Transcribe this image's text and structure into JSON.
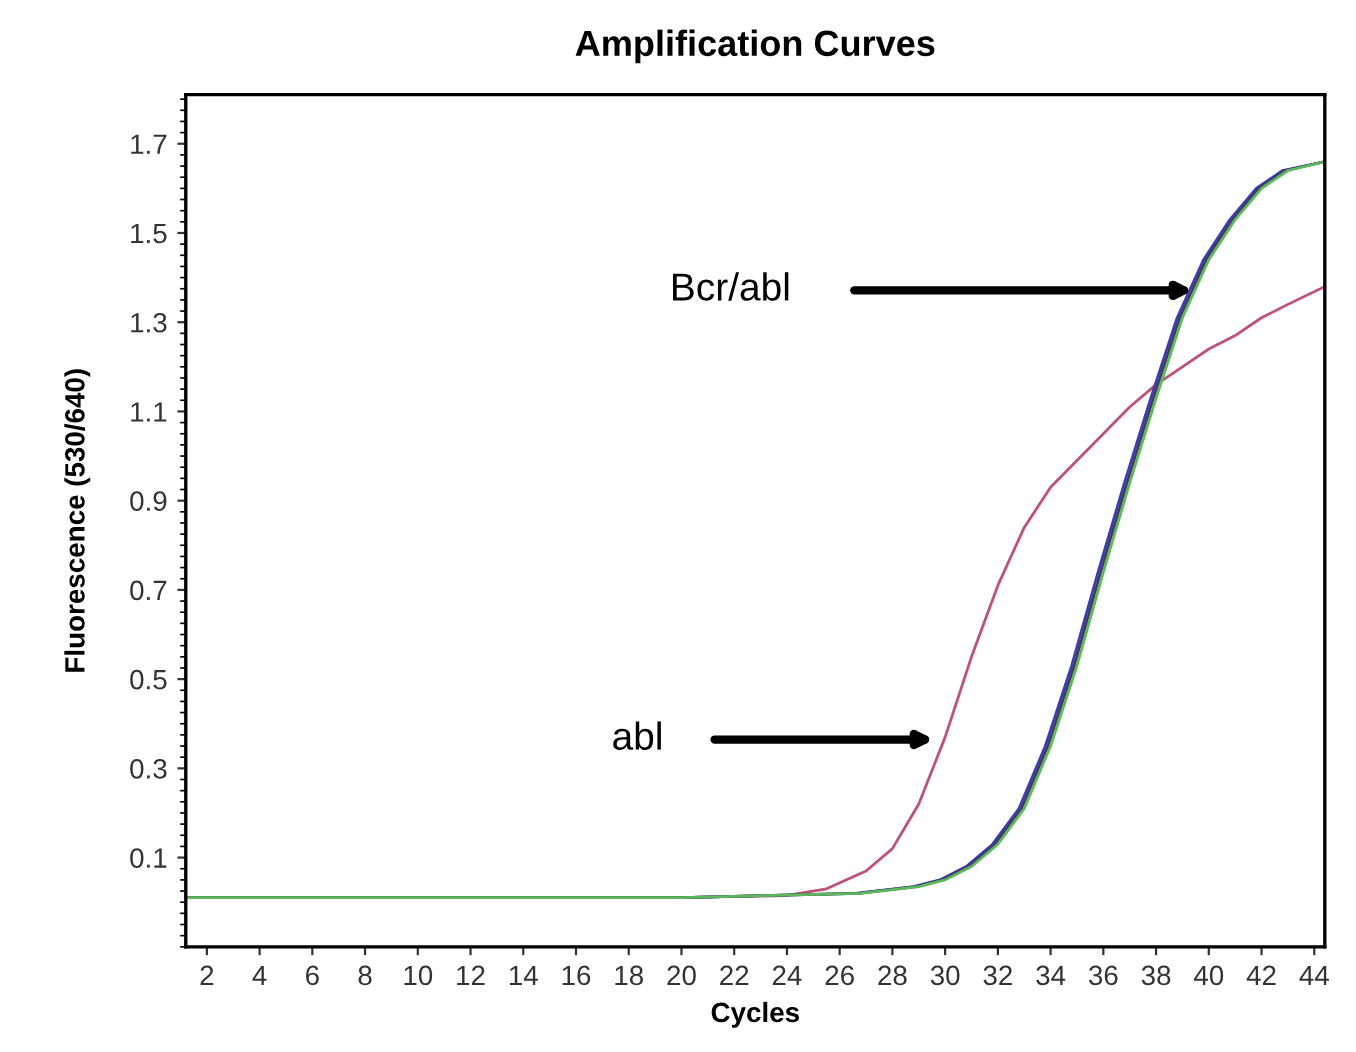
{
  "chart_data": {
    "type": "line",
    "title": "Amplification Curves",
    "xlabel": "Cycles",
    "ylabel": "Fluorescence (530/640)",
    "xlim": [
      1.2,
      44.4
    ],
    "ylim": [
      -0.1,
      1.81
    ],
    "xticks": [
      2,
      4,
      6,
      8,
      10,
      12,
      14,
      16,
      18,
      20,
      22,
      24,
      26,
      28,
      30,
      32,
      34,
      36,
      38,
      40,
      42,
      44
    ],
    "yticks": [
      0.1,
      0.3,
      0.5,
      0.7,
      0.9,
      1.1,
      1.3,
      1.5,
      1.7
    ],
    "grid": false,
    "legend": false,
    "marker": "none",
    "line_style": "solid",
    "series": [
      {
        "color": "#c0507a",
        "x": [
          1.2,
          20,
          24,
          25.5,
          27,
          28,
          29,
          30,
          31,
          32,
          33,
          34,
          35,
          36,
          37,
          38,
          39,
          40,
          41,
          42,
          43,
          44.4
        ],
        "values": [
          0.01,
          0.01,
          0.015,
          0.03,
          0.07,
          0.12,
          0.22,
          0.37,
          0.55,
          0.71,
          0.84,
          0.93,
          0.99,
          1.05,
          1.11,
          1.16,
          1.2,
          1.24,
          1.27,
          1.31,
          1.34,
          1.38
        ]
      },
      {
        "color": "#3a3ac8",
        "x": [
          1.2,
          20,
          26.6,
          28.8,
          29.8,
          30.8,
          31.8,
          32.8,
          33.8,
          34.8,
          35.8,
          36.8,
          37.8,
          38.8,
          39.8,
          40.8,
          41.8,
          42.8,
          44.4
        ],
        "values": [
          0.01,
          0.01,
          0.02,
          0.035,
          0.05,
          0.08,
          0.13,
          0.21,
          0.35,
          0.53,
          0.74,
          0.94,
          1.13,
          1.31,
          1.44,
          1.53,
          1.6,
          1.64,
          1.66
        ]
      },
      {
        "color": "#404040",
        "x": [
          1.2,
          20,
          26.7,
          28.9,
          29.9,
          30.9,
          31.9,
          32.9,
          33.9,
          34.9,
          35.9,
          36.9,
          37.9,
          38.9,
          39.9,
          40.9,
          41.9,
          42.9,
          44.4
        ],
        "values": [
          0.01,
          0.01,
          0.02,
          0.035,
          0.05,
          0.08,
          0.13,
          0.21,
          0.35,
          0.53,
          0.74,
          0.94,
          1.13,
          1.31,
          1.44,
          1.53,
          1.6,
          1.64,
          1.66
        ]
      },
      {
        "color": "#5cb85c",
        "x": [
          1.2,
          20,
          26.8,
          29,
          30,
          31,
          32,
          33,
          34,
          35,
          36,
          37,
          38,
          39,
          40,
          41,
          42,
          43,
          44.4
        ],
        "values": [
          0.01,
          0.01,
          0.02,
          0.035,
          0.05,
          0.08,
          0.13,
          0.21,
          0.35,
          0.53,
          0.74,
          0.94,
          1.13,
          1.31,
          1.44,
          1.53,
          1.6,
          1.64,
          1.66
        ]
      }
    ],
    "annotations": [
      "Bcr/abl",
      "abl"
    ]
  }
}
